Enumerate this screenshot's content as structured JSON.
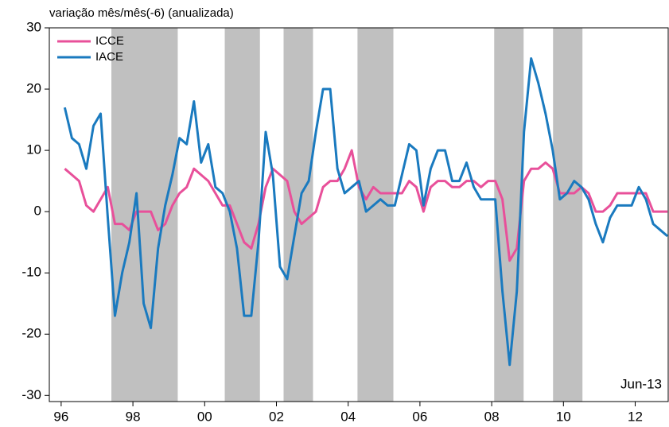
{
  "chart_data": {
    "type": "line",
    "subtitle": "variação mês/mês(-6) (anualizada)",
    "annotation": "Jun-13",
    "x": [
      1996.6,
      1996.8,
      1997.0,
      1997.2,
      1997.4,
      1997.6,
      1997.8,
      1998.0,
      1998.2,
      1998.4,
      1998.6,
      1998.8,
      1999.0,
      1999.2,
      1999.4,
      1999.6,
      1999.8,
      2000.0,
      2000.2,
      2000.4,
      2000.6,
      2000.8,
      2001.0,
      2001.2,
      2001.4,
      2001.6,
      2001.8,
      2002.0,
      2002.2,
      2002.4,
      2002.6,
      2002.8,
      2003.0,
      2003.2,
      2003.4,
      2003.6,
      2003.8,
      2004.0,
      2004.2,
      2004.4,
      2004.6,
      2004.8,
      2005.0,
      2005.2,
      2005.4,
      2005.6,
      2005.8,
      2006.0,
      2006.2,
      2006.4,
      2006.6,
      2006.8,
      2007.0,
      2007.2,
      2007.4,
      2007.6,
      2007.8,
      2008.0,
      2008.2,
      2008.4,
      2008.6,
      2008.8,
      2009.0,
      2009.2,
      2009.4,
      2009.6,
      2009.8,
      2010.0,
      2010.2,
      2010.4,
      2010.6,
      2010.8,
      2011.0,
      2011.2,
      2011.4,
      2011.6,
      2011.8,
      2012.0,
      2012.2,
      2012.4,
      2012.6,
      2012.8,
      2013.0,
      2013.2,
      2013.4
    ],
    "series": [
      {
        "name": "ICCE",
        "color": "#e8509a",
        "values": [
          7,
          6,
          5,
          1,
          0,
          2,
          4,
          -2,
          -2,
          -3,
          0,
          0,
          0,
          -3,
          -2,
          1,
          3,
          4,
          7,
          6,
          5,
          3,
          1,
          1,
          -2,
          -5,
          -6,
          -2,
          4,
          7,
          6,
          5,
          0,
          -2,
          -1,
          0,
          4,
          5,
          5,
          7,
          10,
          4,
          2,
          4,
          3,
          3,
          3,
          3,
          5,
          4,
          0,
          4,
          5,
          5,
          4,
          4,
          5,
          5,
          4,
          5,
          5,
          2,
          -8,
          -6,
          5,
          7,
          7,
          8,
          7,
          3,
          3,
          3,
          4,
          3,
          0,
          0,
          1,
          3,
          3,
          3,
          3,
          3,
          0,
          0,
          0
        ]
      },
      {
        "name": "IACE",
        "color": "#1a7abf",
        "values": [
          17,
          12,
          11,
          7,
          14,
          16,
          -1,
          -17,
          -10,
          -5,
          3,
          -15,
          -19,
          -6,
          1,
          6,
          12,
          11,
          18,
          8,
          11,
          4,
          3,
          0,
          -6,
          -17,
          -17,
          -5,
          13,
          6,
          -9,
          -11,
          -4,
          3,
          5,
          13,
          20,
          20,
          7,
          3,
          4,
          5,
          0,
          1,
          2,
          1,
          1,
          6,
          11,
          10,
          1,
          7,
          10,
          10,
          5,
          5,
          8,
          4,
          2,
          2,
          2,
          -13,
          -25,
          -13,
          13,
          25,
          21,
          16,
          10,
          2,
          3,
          5,
          4,
          2,
          -2,
          -5,
          -1,
          1,
          1,
          1,
          4,
          2,
          -2,
          -3,
          -4
        ]
      }
    ],
    "shaded": [
      [
        1997.9,
        1999.75
      ],
      [
        2001.06,
        2002.04
      ],
      [
        2002.7,
        2003.52
      ],
      [
        2004.76,
        2005.76
      ],
      [
        2008.57,
        2009.39
      ],
      [
        2010.21,
        2011.03
      ]
    ],
    "xlim": [
      1996.17,
      2013.42
    ],
    "xticks": [
      {
        "value": 1996.5,
        "label": "96"
      },
      {
        "value": 1998.5,
        "label": "98"
      },
      {
        "value": 2000.5,
        "label": "00"
      },
      {
        "value": 2002.5,
        "label": "02"
      },
      {
        "value": 2004.5,
        "label": "04"
      },
      {
        "value": 2006.5,
        "label": "06"
      },
      {
        "value": 2008.5,
        "label": "08"
      },
      {
        "value": 2010.5,
        "label": "10"
      },
      {
        "value": 2012.5,
        "label": "12"
      }
    ],
    "ylim": [
      -31,
      30
    ],
    "yticks": [
      -30,
      -20,
      -10,
      0,
      10,
      20,
      30
    ],
    "legend": "upper left"
  }
}
